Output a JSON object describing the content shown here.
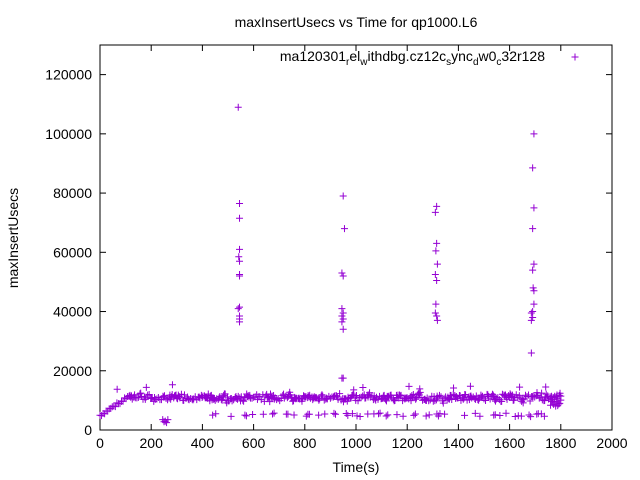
{
  "chart_data": {
    "type": "scatter",
    "title": "maxInsertUsecs vs Time for qp1000.L6",
    "xlabel": "Time(s)",
    "ylabel": "maxInsertUsecs",
    "xlim": [
      0,
      2000
    ],
    "ylim": [
      0,
      130000
    ],
    "x_ticks": [
      0,
      200,
      400,
      600,
      800,
      1000,
      1200,
      1400,
      1600,
      1800,
      2000
    ],
    "y_ticks": [
      0,
      20000,
      40000,
      60000,
      80000,
      100000,
      120000
    ],
    "grid": false,
    "legend_position": "top-right",
    "series": [
      {
        "name": "ma120301_rel_withdbg.cz12c_sync_dw0_c32r128",
        "color": "#9400d3",
        "marker": "+",
        "spikes": [
          {
            "x": 540,
            "y": 109000
          },
          {
            "x": 545,
            "y": 76500
          },
          {
            "x": 545,
            "y": 71500
          },
          {
            "x": 545,
            "y": 61000
          },
          {
            "x": 542,
            "y": 58500
          },
          {
            "x": 545,
            "y": 57000
          },
          {
            "x": 545,
            "y": 52500
          },
          {
            "x": 545,
            "y": 52000
          },
          {
            "x": 545,
            "y": 41500
          },
          {
            "x": 540,
            "y": 41000
          },
          {
            "x": 545,
            "y": 38500
          },
          {
            "x": 545,
            "y": 37500
          },
          {
            "x": 545,
            "y": 36500
          },
          {
            "x": 950,
            "y": 79000
          },
          {
            "x": 955,
            "y": 68000
          },
          {
            "x": 945,
            "y": 53000
          },
          {
            "x": 950,
            "y": 52000
          },
          {
            "x": 945,
            "y": 41000
          },
          {
            "x": 950,
            "y": 39500
          },
          {
            "x": 945,
            "y": 38500
          },
          {
            "x": 950,
            "y": 37500
          },
          {
            "x": 945,
            "y": 36500
          },
          {
            "x": 950,
            "y": 34000
          },
          {
            "x": 945,
            "y": 17500
          },
          {
            "x": 950,
            "y": 17500
          },
          {
            "x": 1315,
            "y": 75500
          },
          {
            "x": 1310,
            "y": 73500
          },
          {
            "x": 1315,
            "y": 63000
          },
          {
            "x": 1312,
            "y": 60500
          },
          {
            "x": 1318,
            "y": 56000
          },
          {
            "x": 1310,
            "y": 52500
          },
          {
            "x": 1315,
            "y": 50500
          },
          {
            "x": 1312,
            "y": 42500
          },
          {
            "x": 1310,
            "y": 39500
          },
          {
            "x": 1315,
            "y": 38500
          },
          {
            "x": 1318,
            "y": 37000
          },
          {
            "x": 1695,
            "y": 100000
          },
          {
            "x": 1690,
            "y": 88500
          },
          {
            "x": 1695,
            "y": 75000
          },
          {
            "x": 1690,
            "y": 68000
          },
          {
            "x": 1695,
            "y": 56000
          },
          {
            "x": 1690,
            "y": 54000
          },
          {
            "x": 1692,
            "y": 48000
          },
          {
            "x": 1695,
            "y": 47000
          },
          {
            "x": 1695,
            "y": 42500
          },
          {
            "x": 1690,
            "y": 40000
          },
          {
            "x": 1685,
            "y": 39500
          },
          {
            "x": 1690,
            "y": 38000
          },
          {
            "x": 1685,
            "y": 37000
          },
          {
            "x": 1685,
            "y": 26000
          }
        ],
        "baseline": {
          "x_start": 0,
          "x_end": 1800,
          "typical_y": 11000,
          "range_y": [
            4000,
            15000
          ],
          "description_text": ""
        },
        "outliers": [
          {
            "x": 245,
            "y": 3500
          },
          {
            "x": 255,
            "y": 3000
          },
          {
            "x": 260,
            "y": 2500
          },
          {
            "x": 265,
            "y": 3500
          },
          {
            "x": 250,
            "y": 2800
          }
        ]
      }
    ]
  }
}
